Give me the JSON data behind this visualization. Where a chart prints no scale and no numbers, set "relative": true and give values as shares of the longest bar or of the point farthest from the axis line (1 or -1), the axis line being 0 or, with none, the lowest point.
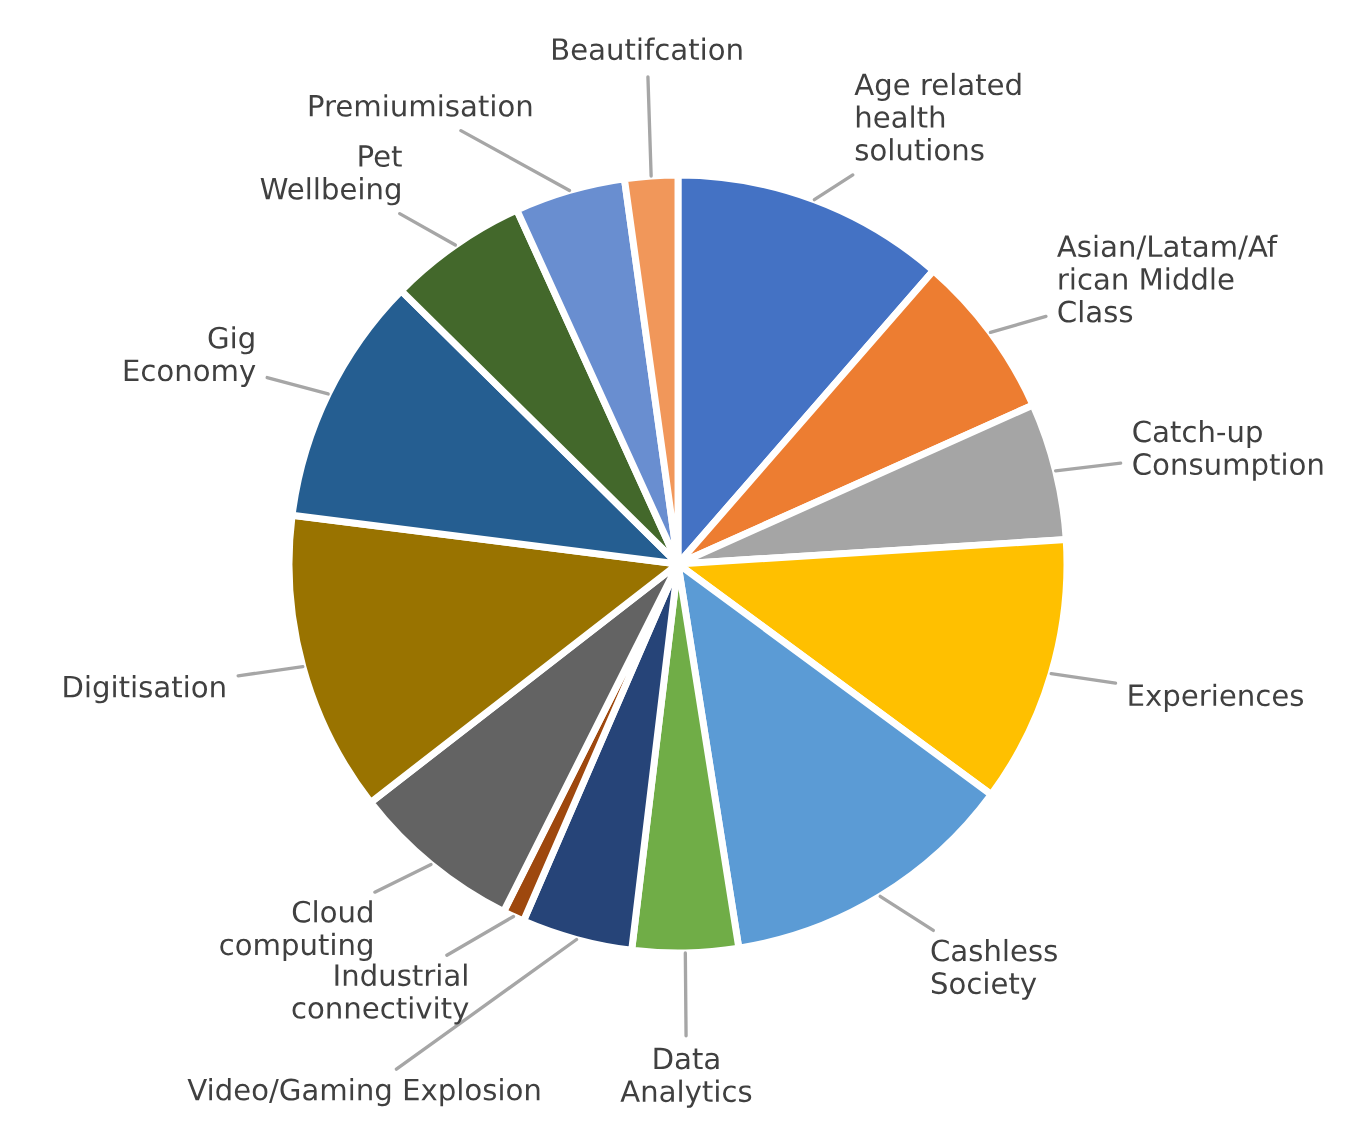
{
  "chart_data": {
    "type": "pie",
    "relative": true,
    "categories": [
      "Age related\nhealth\nsolutions",
      "Asian/Latam/Af\nrican Middle\nClass",
      "Catch-up\nConsumption",
      "Experiences",
      "Cashless\nSociety",
      "Data\nAnalytics",
      "Video/Gaming Explosion",
      "Industrial\nconnectivity",
      "Cloud\ncomputing",
      "Digitisation",
      "Gig\nEconomy",
      "Pet\nWellbeing",
      "Premiumisation",
      "Beautifcation"
    ],
    "values": [
      11.4,
      6.9,
      5.7,
      11.1,
      12.4,
      4.4,
      4.6,
      0.9,
      7.1,
      12.5,
      10.4,
      5.8,
      4.6,
      2.2
    ],
    "colors": [
      "#4472c4",
      "#ed7d31",
      "#a5a5a5",
      "#ffc000",
      "#5b9bd5",
      "#70ad47",
      "#264478",
      "#9e480e",
      "#636363",
      "#997300",
      "#255e91",
      "#43682b",
      "#698ed0",
      "#f1975a"
    ],
    "legend": false
  }
}
